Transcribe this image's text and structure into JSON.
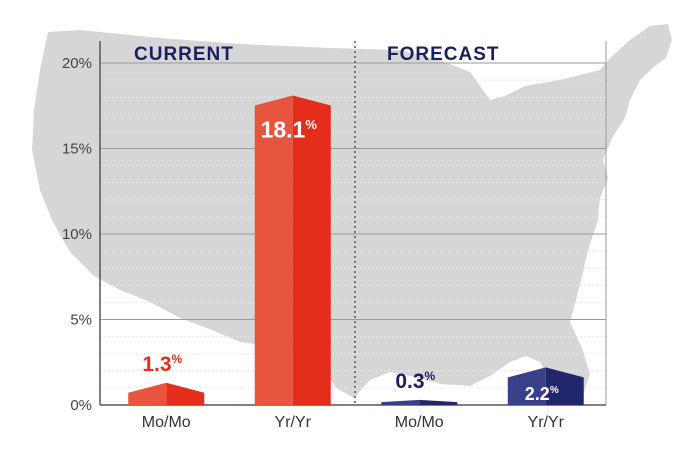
{
  "chart_data": {
    "type": "bar",
    "title": "",
    "xlabel": "",
    "ylabel": "",
    "ylim": [
      0,
      20
    ],
    "y_ticks": [
      "0%",
      "5%",
      "10%",
      "15%",
      "20%"
    ],
    "grid": true,
    "groups": [
      {
        "label": "CURRENT",
        "label_color": "#1c1f5e",
        "bars": [
          {
            "category": "Mo/Mo",
            "value": 1.3,
            "label": "1.3",
            "unit": "%",
            "color_left": "#e8553f",
            "color_right": "#e52d1c",
            "label_color": "#e52d1c"
          },
          {
            "category": "Yr/Yr",
            "value": 18.1,
            "label": "18.1",
            "unit": "%",
            "color_left": "#e8553f",
            "color_right": "#e52d1c",
            "label_color": "#ffffff"
          }
        ]
      },
      {
        "label": "FORECAST",
        "label_color": "#1c1f5e",
        "bars": [
          {
            "category": "Mo/Mo",
            "value": 0.3,
            "label": "0.3",
            "unit": "%",
            "color_left": "#3a3f8a",
            "color_right": "#22266b",
            "label_color": "#1c1f5e"
          },
          {
            "category": "Yr/Yr",
            "value": 2.2,
            "label": "2.2",
            "unit": "%",
            "color_left": "#3a3f8a",
            "color_right": "#22266b",
            "label_color": "#ffffff"
          }
        ]
      }
    ],
    "colors": {
      "map": "#d6d6d6",
      "grid_major": "#9a9a9a",
      "grid_minor": "#e6e6e6",
      "axis": "#555555",
      "divider": "#555555"
    }
  }
}
